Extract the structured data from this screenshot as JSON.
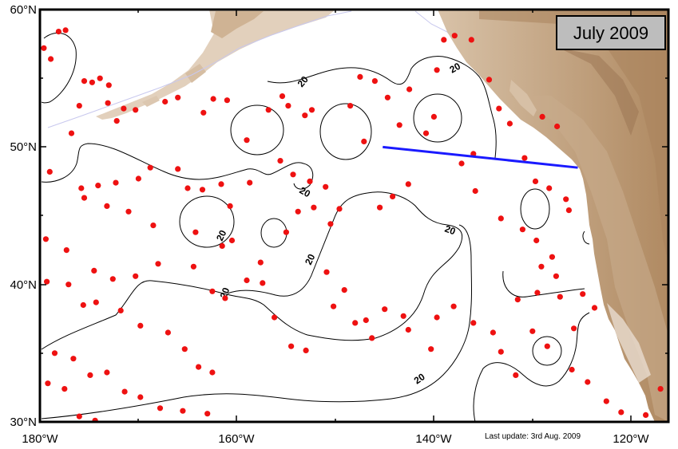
{
  "map": {
    "date_label": "July 2009",
    "update_note": "Last update: 3rd Aug. 2009",
    "contour_value": "20",
    "lon_ticks": [
      "180°W",
      "160°W",
      "140°W",
      "120°W"
    ],
    "lat_ticks": [
      "60°N",
      "50°N",
      "40°N",
      "30°N"
    ],
    "colors": {
      "float": "#ee1111",
      "section_line": "#1a1aff",
      "land_light": "#dcc6ad",
      "land_dark": "#b38d66",
      "contour": "#000000",
      "coast": "#c8c8ee"
    },
    "section_line": {
      "start": {
        "lon": -145.2,
        "lat": 50.0
      },
      "end": {
        "lon": -125.4,
        "lat": 48.5
      }
    },
    "floats": [
      [
        -179.6,
        57.2
      ],
      [
        -178.9,
        56.4
      ],
      [
        -178.1,
        58.4
      ],
      [
        -177.4,
        58.5
      ],
      [
        -175.5,
        54.8
      ],
      [
        -174.7,
        54.7
      ],
      [
        -173.9,
        55.0
      ],
      [
        -173.0,
        54.5
      ],
      [
        -176.0,
        53.0
      ],
      [
        -173.1,
        53.2
      ],
      [
        -171.5,
        52.8
      ],
      [
        -170.3,
        52.7
      ],
      [
        -172.2,
        51.9
      ],
      [
        -167.3,
        53.3
      ],
      [
        -166.0,
        53.6
      ],
      [
        -163.4,
        52.5
      ],
      [
        -162.4,
        53.5
      ],
      [
        -161.0,
        53.4
      ],
      [
        -176.8,
        51.0
      ],
      [
        -179.0,
        48.2
      ],
      [
        -175.8,
        47.0
      ],
      [
        -174.1,
        47.2
      ],
      [
        -172.3,
        47.4
      ],
      [
        -170.0,
        47.7
      ],
      [
        -168.8,
        48.5
      ],
      [
        -166.0,
        48.4
      ],
      [
        -165.0,
        47.0
      ],
      [
        -163.5,
        46.9
      ],
      [
        -161.6,
        47.3
      ],
      [
        -158.7,
        47.4
      ],
      [
        -175.5,
        46.3
      ],
      [
        -173.2,
        45.7
      ],
      [
        -171.0,
        45.3
      ],
      [
        -168.5,
        44.3
      ],
      [
        -164.2,
        43.8
      ],
      [
        -179.4,
        43.3
      ],
      [
        -177.3,
        42.5
      ],
      [
        -174.5,
        41.0
      ],
      [
        -172.6,
        40.4
      ],
      [
        -170.3,
        40.6
      ],
      [
        -168.0,
        41.5
      ],
      [
        -164.4,
        41.3
      ],
      [
        -161.5,
        42.8
      ],
      [
        -160.5,
        43.2
      ],
      [
        -162.5,
        39.5
      ],
      [
        -161.2,
        39.0
      ],
      [
        -159.0,
        40.3
      ],
      [
        -157.4,
        40.1
      ],
      [
        -179.3,
        40.2
      ],
      [
        -177.1,
        40.0
      ],
      [
        -175.6,
        38.5
      ],
      [
        -174.3,
        38.7
      ],
      [
        -171.8,
        38.1
      ],
      [
        -169.8,
        37.0
      ],
      [
        -167.0,
        36.5
      ],
      [
        -165.3,
        35.3
      ],
      [
        -163.9,
        34.0
      ],
      [
        -162.5,
        33.6
      ],
      [
        -178.5,
        35.0
      ],
      [
        -176.6,
        34.6
      ],
      [
        -174.9,
        33.4
      ],
      [
        -173.2,
        33.6
      ],
      [
        -171.4,
        32.2
      ],
      [
        -169.8,
        31.8
      ],
      [
        -167.8,
        31.0
      ],
      [
        -165.5,
        30.8
      ],
      [
        -163.0,
        30.6
      ],
      [
        -179.2,
        32.8
      ],
      [
        -177.5,
        32.4
      ],
      [
        -176.0,
        30.4
      ],
      [
        -174.4,
        30.1
      ],
      [
        -156.2,
        37.6
      ],
      [
        -154.5,
        35.5
      ],
      [
        -153.0,
        35.2
      ],
      [
        -150.2,
        38.4
      ],
      [
        -149.1,
        39.6
      ],
      [
        -148.0,
        37.2
      ],
      [
        -146.3,
        36.1
      ],
      [
        -145.0,
        38.2
      ],
      [
        -143.1,
        37.7
      ],
      [
        -142.6,
        36.7
      ],
      [
        -140.3,
        35.3
      ],
      [
        -139.7,
        37.6
      ],
      [
        -138.0,
        38.4
      ],
      [
        -136.0,
        37.2
      ],
      [
        -134.0,
        36.5
      ],
      [
        -133.2,
        35.1
      ],
      [
        -131.7,
        33.4
      ],
      [
        -130.0,
        36.6
      ],
      [
        -128.5,
        35.5
      ],
      [
        -126.0,
        33.8
      ],
      [
        -124.4,
        32.9
      ],
      [
        -122.5,
        31.5
      ],
      [
        -121.0,
        30.7
      ],
      [
        -118.5,
        30.5
      ],
      [
        -117.0,
        32.4
      ],
      [
        -155.6,
        49.0
      ],
      [
        -154.3,
        48.0
      ],
      [
        -152.6,
        47.5
      ],
      [
        -151.0,
        47.1
      ],
      [
        -153.8,
        45.3
      ],
      [
        -152.2,
        45.6
      ],
      [
        -155.0,
        43.8
      ],
      [
        -150.5,
        44.4
      ],
      [
        -149.6,
        45.5
      ],
      [
        -153.1,
        52.3
      ],
      [
        -152.4,
        52.7
      ],
      [
        -154.8,
        53.0
      ],
      [
        -155.4,
        53.7
      ],
      [
        -147.5,
        55.1
      ],
      [
        -146.0,
        54.8
      ],
      [
        -144.7,
        53.6
      ],
      [
        -143.5,
        51.6
      ],
      [
        -140.8,
        51.0
      ],
      [
        -140.0,
        52.2
      ],
      [
        -142.5,
        54.2
      ],
      [
        -139.7,
        55.6
      ],
      [
        -139.0,
        57.8
      ],
      [
        -137.9,
        58.1
      ],
      [
        -136.2,
        57.8
      ],
      [
        -134.4,
        54.9
      ],
      [
        -133.4,
        52.8
      ],
      [
        -132.3,
        51.7
      ],
      [
        -130.8,
        49.2
      ],
      [
        -129.0,
        52.2
      ],
      [
        -127.5,
        51.5
      ],
      [
        -136.0,
        49.5
      ],
      [
        -137.2,
        48.8
      ],
      [
        -142.6,
        47.3
      ],
      [
        -144.2,
        46.4
      ],
      [
        -145.5,
        45.6
      ],
      [
        -135.8,
        46.8
      ],
      [
        -133.2,
        44.8
      ],
      [
        -131.0,
        44.0
      ],
      [
        -129.6,
        43.2
      ],
      [
        -128.0,
        42.0
      ],
      [
        -131.5,
        38.9
      ],
      [
        -129.5,
        39.4
      ],
      [
        -127.2,
        39.1
      ],
      [
        -125.8,
        36.8
      ],
      [
        -129.1,
        41.3
      ],
      [
        -127.6,
        40.6
      ],
      [
        -124.9,
        39.3
      ],
      [
        -123.7,
        38.3
      ],
      [
        -129.7,
        47.5
      ],
      [
        -128.3,
        47.0
      ],
      [
        -126.6,
        46.2
      ],
      [
        -126.3,
        45.4
      ],
      [
        -146.9,
        37.4
      ],
      [
        -150.9,
        40.9
      ],
      [
        -157.6,
        41.6
      ],
      [
        -160.7,
        45.7
      ],
      [
        -148.5,
        53.0
      ],
      [
        -147.1,
        50.4
      ],
      [
        -159.0,
        50.5
      ],
      [
        -156.8,
        52.7
      ]
    ]
  }
}
